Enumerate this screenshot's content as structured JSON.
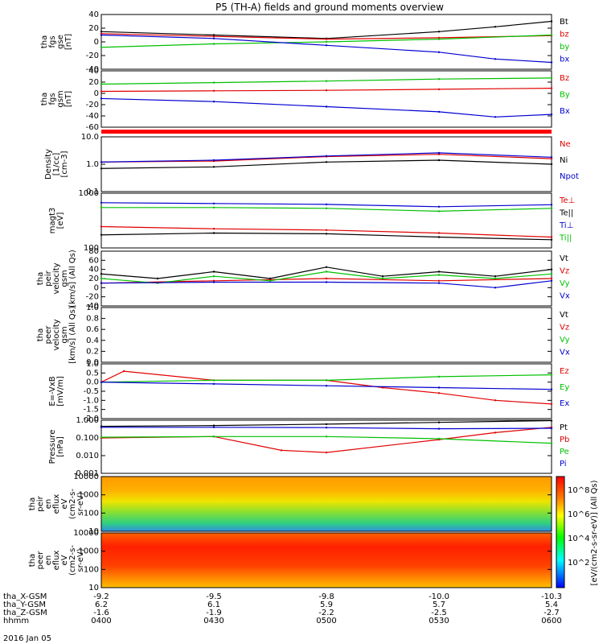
{
  "title": "P5 (TH-A) fields and ground moments overview",
  "date_label": "2016 Jan 05",
  "colorbar_label": "[eV/(cm2-s-sr-eV)] (All Qs)",
  "colorbar_ticks": [
    "10^8",
    "10^6",
    "10^4",
    "10^2"
  ],
  "ephemeris": {
    "rows": [
      {
        "name": "tha_X-GSM",
        "values": [
          "-9.2",
          "-9.5",
          "-9.8",
          "-10.0",
          "-10.3"
        ]
      },
      {
        "name": "tha_Y-GSM",
        "values": [
          "6.2",
          "6.1",
          "5.9",
          "5.7",
          "5.4"
        ]
      },
      {
        "name": "tha_Z-GSM",
        "values": [
          "-1.6",
          "-1.9",
          "-2.2",
          "-2.5",
          "-2.7"
        ]
      },
      {
        "name": "hhmm",
        "values": [
          "0400",
          "0430",
          "0500",
          "0530",
          "0600"
        ]
      }
    ]
  },
  "chart_data": [
    {
      "id": "fgs_gse",
      "type": "line",
      "ylabel": [
        "tha",
        "fgs",
        "gse",
        "[nT]"
      ],
      "ylim": [
        -40,
        40
      ],
      "ticks": [
        "40",
        "20",
        "0",
        "-20",
        "-40"
      ],
      "series": [
        {
          "name": "Bt",
          "color": "#000000",
          "x": [
            4.0,
            4.5,
            5.0,
            5.5,
            5.75,
            6.0
          ],
          "values": [
            15,
            10,
            5,
            15,
            22,
            30
          ]
        },
        {
          "name": "bz",
          "color": "#e00000",
          "x": [
            4.0,
            4.5,
            5.0,
            5.5,
            6.0
          ],
          "values": [
            12,
            8,
            4,
            6,
            9
          ]
        },
        {
          "name": "by",
          "color": "#00c000",
          "x": [
            4.0,
            4.5,
            5.0,
            5.5,
            6.0
          ],
          "values": [
            -8,
            -3,
            0,
            4,
            10
          ]
        },
        {
          "name": "bx",
          "color": "#0000d0",
          "x": [
            4.0,
            4.5,
            5.0,
            5.5,
            5.75,
            6.0
          ],
          "values": [
            10,
            5,
            -5,
            -15,
            -25,
            -30
          ]
        }
      ]
    },
    {
      "id": "fgs_gsm",
      "type": "line",
      "ylabel": [
        "tha",
        "fgs",
        "gsm",
        "[nT]"
      ],
      "ylim": [
        -70,
        40
      ],
      "ticks": [
        "40",
        "20",
        "0",
        "-20",
        "-40",
        "-60"
      ],
      "series": [
        {
          "name": "Bz",
          "color": "#e00000",
          "x": [
            4.0,
            4.5,
            5.0,
            5.5,
            6.0
          ],
          "values": [
            0,
            1,
            2,
            4,
            6
          ]
        },
        {
          "name": "By",
          "color": "#00c000",
          "x": [
            4.0,
            4.5,
            5.0,
            5.5,
            6.0
          ],
          "values": [
            14,
            17,
            20,
            24,
            26
          ]
        },
        {
          "name": "Bx",
          "color": "#0000d0",
          "x": [
            4.0,
            4.5,
            5.0,
            5.5,
            5.75,
            6.0
          ],
          "values": [
            -14,
            -20,
            -30,
            -40,
            -50,
            -45
          ]
        }
      ]
    },
    {
      "id": "density",
      "type": "line",
      "log": true,
      "ylabel": [
        "Density",
        "[1/cc]",
        "[cm-3]"
      ],
      "ylim": [
        0.1,
        10
      ],
      "ticks": [
        "10.0",
        "1.0",
        "0.1"
      ],
      "series": [
        {
          "name": "Ne",
          "color": "#e00000",
          "x": [
            4.0,
            4.5,
            5.0,
            5.5,
            6.0
          ],
          "values": [
            1.2,
            1.3,
            1.9,
            2.3,
            1.6
          ]
        },
        {
          "name": "Ni",
          "color": "#000000",
          "x": [
            4.0,
            4.5,
            5.0,
            5.5,
            6.0
          ],
          "values": [
            0.7,
            0.8,
            1.2,
            1.4,
            1.0
          ]
        },
        {
          "name": "Npot",
          "color": "#0000d0",
          "x": [
            4.0,
            4.5,
            5.0,
            5.5,
            6.0
          ],
          "values": [
            1.2,
            1.4,
            2.0,
            2.6,
            1.8
          ]
        }
      ]
    },
    {
      "id": "temperature",
      "type": "line",
      "log": true,
      "ylabel": [
        "magt3",
        "[eV]"
      ],
      "ylim": [
        100,
        10000
      ],
      "ticks": [
        "1000",
        "100"
      ],
      "series": [
        {
          "name": "Te⊥",
          "color": "#e00000",
          "x": [
            4.0,
            4.5,
            5.0,
            5.5,
            6.0
          ],
          "values": [
            600,
            500,
            450,
            350,
            250
          ]
        },
        {
          "name": "Te||",
          "color": "#000000",
          "x": [
            4.0,
            4.5,
            5.0,
            5.5,
            6.0
          ],
          "values": [
            300,
            350,
            330,
            250,
            200
          ]
        },
        {
          "name": "Ti⊥",
          "color": "#0000d0",
          "x": [
            4.0,
            4.5,
            5.0,
            5.5,
            6.0
          ],
          "values": [
            4500,
            4200,
            3900,
            3200,
            3800
          ]
        },
        {
          "name": "Ti||",
          "color": "#00c000",
          "x": [
            4.0,
            4.5,
            5.0,
            5.5,
            6.0
          ],
          "values": [
            3000,
            3000,
            2800,
            2200,
            2800
          ]
        }
      ]
    },
    {
      "id": "peir_velocity",
      "type": "line",
      "ylabel": [
        "tha",
        "peir",
        "velocity",
        "gsm",
        "[km/s] (All Qs)"
      ],
      "ylim": [
        -40,
        80
      ],
      "ticks": [
        "80",
        "60",
        "40",
        "20",
        "0",
        "-20",
        "-40"
      ],
      "series": [
        {
          "name": "Vt",
          "color": "#000000",
          "x": [
            4.0,
            4.25,
            4.5,
            4.75,
            5.0,
            5.25,
            5.5,
            5.75,
            6.0
          ],
          "values": [
            30,
            20,
            35,
            20,
            45,
            25,
            35,
            25,
            40
          ]
        },
        {
          "name": "Vz",
          "color": "#e00000",
          "x": [
            4.0,
            4.5,
            5.0,
            5.5,
            6.0
          ],
          "values": [
            10,
            15,
            20,
            15,
            20
          ]
        },
        {
          "name": "Vy",
          "color": "#00c000",
          "x": [
            4.0,
            4.25,
            4.5,
            4.75,
            5.0,
            5.25,
            5.5,
            5.75,
            6.0
          ],
          "values": [
            20,
            10,
            25,
            15,
            35,
            20,
            28,
            20,
            30
          ]
        },
        {
          "name": "Vx",
          "color": "#0000d0",
          "x": [
            4.0,
            4.5,
            5.0,
            5.5,
            5.75,
            6.0
          ],
          "values": [
            10,
            12,
            12,
            10,
            0,
            15
          ]
        }
      ]
    },
    {
      "id": "peer_velocity",
      "type": "line",
      "ylabel": [
        "tha",
        "peer",
        "velocity",
        "gsm",
        "[km/s] (All Qs)"
      ],
      "ylim": [
        0,
        1
      ],
      "ticks": [
        "1.0",
        "0.8",
        "0.6",
        "0.4",
        "0.2",
        "0.0"
      ],
      "series": [
        {
          "name": "Vt",
          "color": "#000000",
          "values": []
        },
        {
          "name": "Vz",
          "color": "#e00000",
          "values": []
        },
        {
          "name": "Vy",
          "color": "#00c000",
          "values": []
        },
        {
          "name": "Vx",
          "color": "#0000d0",
          "values": []
        }
      ]
    },
    {
      "id": "e_field",
      "type": "line",
      "ylabel": [
        "E=-VxB",
        "[mV/m]"
      ],
      "ylim": [
        -2,
        1
      ],
      "ticks": [
        "1.0",
        "0.5",
        "0.0",
        "-0.5",
        "-1.0",
        "-1.5",
        "-2.0"
      ],
      "series": [
        {
          "name": "Ez",
          "color": "#e00000",
          "x": [
            4.0,
            4.1,
            4.5,
            5.0,
            5.25,
            5.5,
            5.75,
            6.0
          ],
          "values": [
            0,
            0.6,
            0.1,
            0.1,
            -0.3,
            -0.6,
            -1.0,
            -1.2
          ]
        },
        {
          "name": "Ey",
          "color": "#00c000",
          "x": [
            4.0,
            4.5,
            5.0,
            5.5,
            6.0
          ],
          "values": [
            0,
            0.1,
            0.1,
            0.3,
            0.4
          ]
        },
        {
          "name": "Ex",
          "color": "#0000d0",
          "x": [
            4.0,
            4.5,
            5.0,
            5.5,
            6.0
          ],
          "values": [
            0,
            -0.1,
            -0.2,
            -0.3,
            -0.4
          ]
        }
      ]
    },
    {
      "id": "pressure",
      "type": "line",
      "log": true,
      "ylabel": [
        "Pressure",
        "[nPa]"
      ],
      "ylim": [
        0.001,
        1
      ],
      "ticks": [
        "1.000",
        "0.100",
        "0.010",
        "0.001"
      ],
      "series": [
        {
          "name": "Pt",
          "color": "#000000",
          "x": [
            4.0,
            4.5,
            5.0,
            5.5,
            6.0
          ],
          "values": [
            0.45,
            0.5,
            0.6,
            0.75,
            0.95
          ]
        },
        {
          "name": "Pb",
          "color": "#e00000",
          "x": [
            4.0,
            4.5,
            4.8,
            5.0,
            5.5,
            5.75,
            6.0
          ],
          "values": [
            0.1,
            0.12,
            0.02,
            0.015,
            0.08,
            0.2,
            0.4
          ]
        },
        {
          "name": "Pe",
          "color": "#00c000",
          "x": [
            4.0,
            4.5,
            5.0,
            5.5,
            6.0
          ],
          "values": [
            0.11,
            0.12,
            0.12,
            0.09,
            0.05
          ]
        },
        {
          "name": "Pi",
          "color": "#0000d0",
          "x": [
            4.0,
            4.5,
            5.0,
            5.5,
            6.0
          ],
          "values": [
            0.4,
            0.4,
            0.38,
            0.33,
            0.35
          ]
        }
      ]
    },
    {
      "id": "peir_spectrogram",
      "type": "heatmap",
      "ylabel": [
        "tha",
        "peir",
        "en",
        "eflux",
        "eV",
        "(cm2-s-",
        "sr-eV)"
      ],
      "ylim": [
        10,
        10000
      ],
      "ticks": [
        "10000",
        "1000",
        "100",
        "10"
      ]
    },
    {
      "id": "peer_spectrogram",
      "type": "heatmap",
      "ylabel": [
        "tha",
        "peer",
        "en",
        "eflux",
        "eV",
        "(cm2-s-",
        "sr-eV)"
      ],
      "ylim": [
        10,
        10000
      ],
      "ticks": [
        "10000",
        "1000",
        "100",
        "10"
      ]
    }
  ]
}
